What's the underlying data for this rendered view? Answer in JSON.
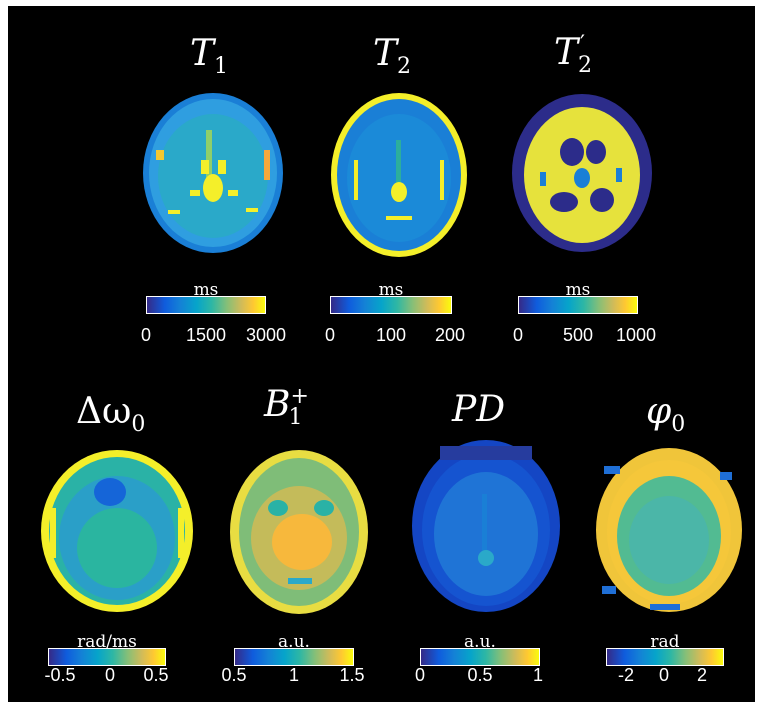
{
  "panels": [
    {
      "id": "t1",
      "title_main": "T",
      "title_sub": "1",
      "title_sup": "",
      "unit": "ms",
      "ticks": [
        "0",
        "1500",
        "3000"
      ],
      "map_style": {
        "bg": "#1a7fd6",
        "ring": "#2f9ee0",
        "interior": "#2aa9c9",
        "accent": "#f4ef2a"
      }
    },
    {
      "id": "t2",
      "title_main": "T",
      "title_sub": "2",
      "title_sup": "",
      "unit": "ms",
      "ticks": [
        "0",
        "100",
        "200"
      ],
      "map_style": {
        "bg": "#1a7fd6",
        "ring": "#f4ef2a",
        "interior": "#1b8ad8",
        "accent": "#f4ef2a"
      }
    },
    {
      "id": "t2prime",
      "title_main": "T",
      "title_sub": "2",
      "title_sup": "′",
      "unit": "ms",
      "ticks": [
        "0",
        "500",
        "1000"
      ],
      "map_style": {
        "bg": "#2c2c8a",
        "ring": "#2c2c8a",
        "interior": "#e6e23c",
        "accent": "#f9fb0e"
      }
    },
    {
      "id": "dw0",
      "title_main": "Δω",
      "title_sub": "0",
      "title_sup": "",
      "unit": "rad/ms",
      "ticks": [
        "-0.5",
        "0",
        "0.5"
      ],
      "map_style": {
        "bg": "#2a9fc8",
        "ring": "#f4ef2a",
        "interior": "#2ab2a6",
        "accent": "#1565d8"
      }
    },
    {
      "id": "b1",
      "title_main": "B",
      "title_sub": "1",
      "title_sup": "+",
      "unit": "a.u.",
      "ticks": [
        "0.5",
        "1",
        "1.5"
      ],
      "map_style": {
        "bg": "#7fbd78",
        "ring": "#e8dd42",
        "interior": "#c4bb5a",
        "accent": "#f7b83c"
      }
    },
    {
      "id": "pd",
      "title_main": "PD",
      "title_sub": "",
      "title_sup": "",
      "unit": "a.u.",
      "ticks": [
        "0",
        "0.5",
        "1"
      ],
      "map_style": {
        "bg": "#1554d0",
        "ring": "#1446c4",
        "interior": "#1f74d6",
        "accent": "#263c9e"
      }
    },
    {
      "id": "phi0",
      "title_main": "φ",
      "title_sub": "0",
      "title_sup": "",
      "unit": "rad",
      "ticks": [
        "-2",
        "0",
        "2"
      ],
      "map_style": {
        "bg": "#f0c53a",
        "ring": "#f5c73a",
        "interior": "#52bb92",
        "accent": "#1f6fd6"
      }
    }
  ]
}
